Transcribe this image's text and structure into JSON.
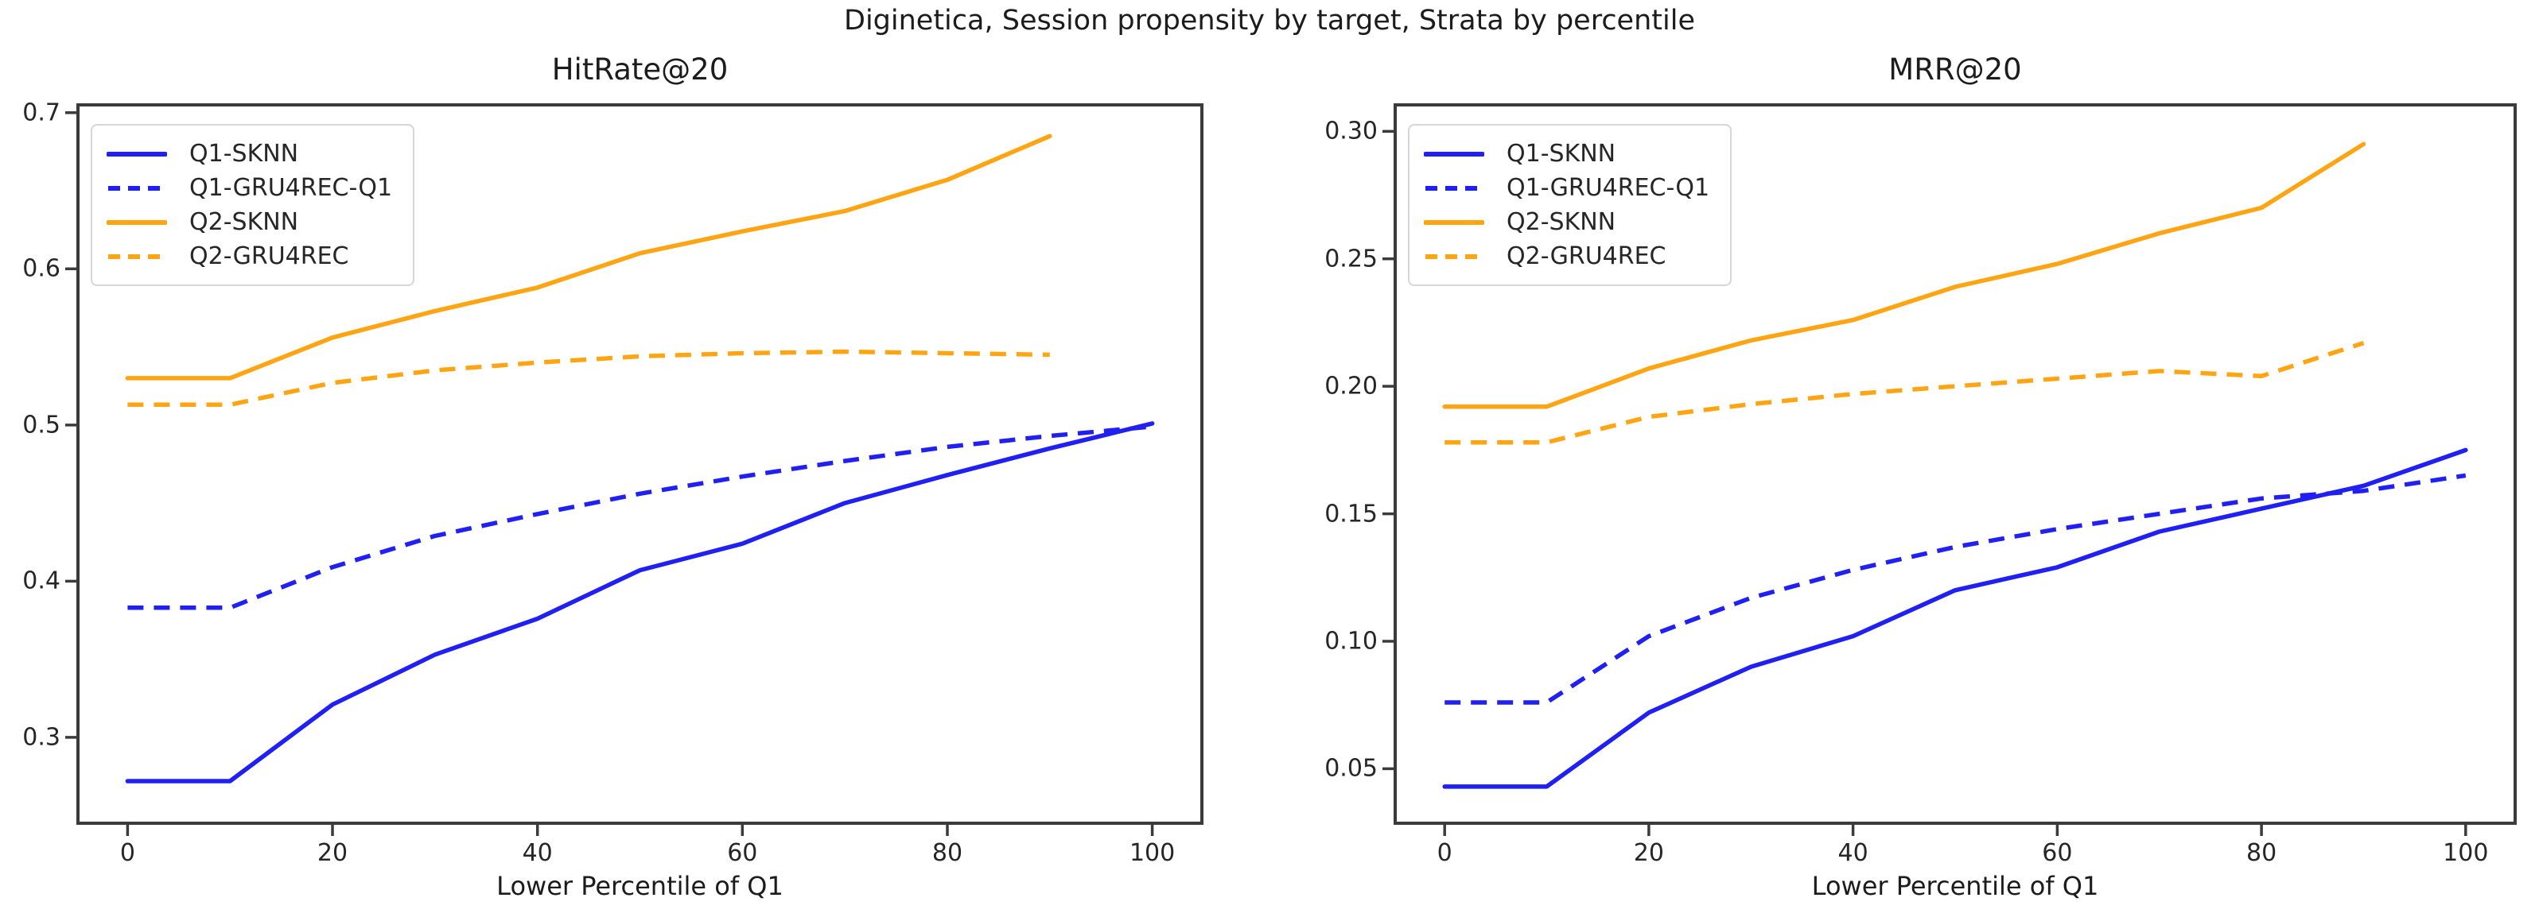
{
  "figure": {
    "suptitle": "Diginetica, Session propensity by target, Strata by percentile",
    "background": "#ffffff"
  },
  "colors": {
    "blue": "#2020f2",
    "orange": "#ffa513",
    "spine": "#3b3b3b",
    "text": "#1c1c1c"
  },
  "chart_data": [
    {
      "type": "line",
      "title": "HitRate@20",
      "xlabel": "Lower Percentile of Q1",
      "xlim": [
        -5,
        105
      ],
      "ylim": [
        0.244,
        0.706
      ],
      "xticks": [
        0,
        20,
        40,
        60,
        80,
        100
      ],
      "xtick_labels": [
        "0",
        "20",
        "40",
        "60",
        "80",
        "100"
      ],
      "yticks": [
        0.7,
        0.6,
        0.5,
        0.4,
        0.3
      ],
      "ytick_labels": [
        "0.7",
        "0.6",
        "0.5",
        "0.4",
        "0.3"
      ],
      "grid": false,
      "legend_position": "upper-left",
      "series": [
        {
          "name": "Q1-SKNN",
          "color": "blue",
          "dash": false,
          "x": [
            0,
            10,
            20,
            30,
            40,
            50,
            60,
            70,
            80,
            90,
            100
          ],
          "y": [
            0.272,
            0.272,
            0.321,
            0.353,
            0.376,
            0.407,
            0.424,
            0.45,
            0.468,
            0.485,
            0.501
          ]
        },
        {
          "name": "Q1-GRU4REC-Q1",
          "color": "blue",
          "dash": true,
          "x": [
            0,
            10,
            20,
            30,
            40,
            50,
            60,
            70,
            80,
            90,
            100
          ],
          "y": [
            0.383,
            0.383,
            0.409,
            0.429,
            0.443,
            0.456,
            0.467,
            0.477,
            0.486,
            0.493,
            0.499
          ]
        },
        {
          "name": "Q2-SKNN",
          "color": "orange",
          "dash": false,
          "x": [
            0,
            10,
            20,
            30,
            40,
            50,
            60,
            70,
            80,
            90
          ],
          "y": [
            0.53,
            0.53,
            0.556,
            0.573,
            0.588,
            0.61,
            0.624,
            0.637,
            0.657,
            0.685
          ]
        },
        {
          "name": "Q2-GRU4REC",
          "color": "orange",
          "dash": true,
          "x": [
            0,
            10,
            20,
            30,
            40,
            50,
            60,
            70,
            80,
            90
          ],
          "y": [
            0.513,
            0.513,
            0.527,
            0.535,
            0.54,
            0.544,
            0.546,
            0.547,
            0.546,
            0.545
          ]
        }
      ]
    },
    {
      "type": "line",
      "title": "MRR@20",
      "xlabel": "Lower Percentile of Q1",
      "xlim": [
        -5,
        105
      ],
      "ylim": [
        0.028,
        0.311
      ],
      "xticks": [
        0,
        20,
        40,
        60,
        80,
        100
      ],
      "xtick_labels": [
        "0",
        "20",
        "40",
        "60",
        "80",
        "100"
      ],
      "yticks": [
        0.3,
        0.25,
        0.2,
        0.15,
        0.1,
        0.05
      ],
      "ytick_labels": [
        "0.30",
        "0.25",
        "0.20",
        "0.15",
        "0.10",
        "0.05"
      ],
      "grid": false,
      "legend_position": "upper-left",
      "series": [
        {
          "name": "Q1-SKNN",
          "color": "blue",
          "dash": false,
          "x": [
            0,
            10,
            20,
            30,
            40,
            50,
            60,
            70,
            80,
            90,
            100
          ],
          "y": [
            0.043,
            0.043,
            0.072,
            0.09,
            0.102,
            0.12,
            0.129,
            0.143,
            0.152,
            0.161,
            0.175
          ]
        },
        {
          "name": "Q1-GRU4REC-Q1",
          "color": "blue",
          "dash": true,
          "x": [
            0,
            10,
            20,
            30,
            40,
            50,
            60,
            70,
            80,
            90,
            100
          ],
          "y": [
            0.076,
            0.076,
            0.102,
            0.117,
            0.128,
            0.137,
            0.144,
            0.15,
            0.156,
            0.159,
            0.165
          ]
        },
        {
          "name": "Q2-SKNN",
          "color": "orange",
          "dash": false,
          "x": [
            0,
            10,
            20,
            30,
            40,
            50,
            60,
            70,
            80,
            90
          ],
          "y": [
            0.192,
            0.192,
            0.207,
            0.218,
            0.226,
            0.239,
            0.248,
            0.26,
            0.27,
            0.295
          ]
        },
        {
          "name": "Q2-GRU4REC",
          "color": "orange",
          "dash": true,
          "x": [
            0,
            10,
            20,
            30,
            40,
            50,
            60,
            70,
            80,
            90
          ],
          "y": [
            0.178,
            0.178,
            0.188,
            0.193,
            0.197,
            0.2,
            0.203,
            0.206,
            0.204,
            0.217
          ]
        }
      ]
    }
  ]
}
